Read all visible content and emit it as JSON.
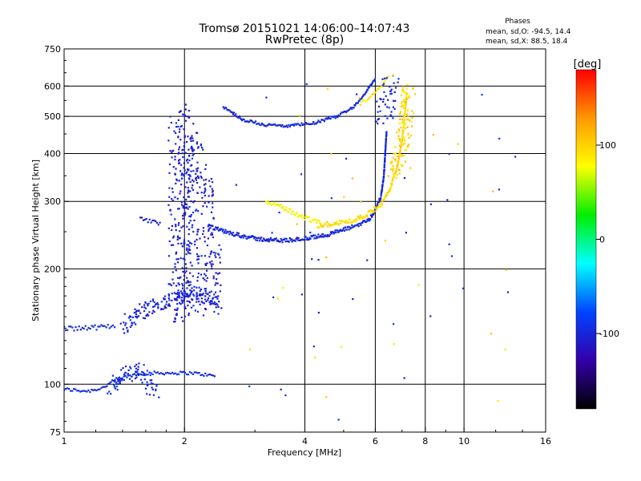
{
  "chart_data": {
    "type": "scatter",
    "title": "Tromsø 20151021 14:06:00–14:07:43",
    "subtitle": "RwPretec (8p)",
    "xlabel": "Frequency [MHz]",
    "ylabel": "Stationary phase Virtual Height [km]",
    "x_scale": "log",
    "y_scale": "log",
    "xlim": [
      1,
      16
    ],
    "ylim": [
      75,
      750
    ],
    "x_ticks": [
      1,
      2,
      4,
      6,
      8,
      10,
      16
    ],
    "y_ticks": [
      75,
      100,
      200,
      300,
      400,
      500,
      600,
      750
    ],
    "x_tick_labels": [
      "1",
      "2",
      "4",
      "6",
      "8",
      "10",
      "16"
    ],
    "y_tick_labels": [
      "75",
      "100",
      "200",
      "300",
      "400",
      "500",
      "600",
      "750"
    ],
    "x_gridlines": [
      2,
      4,
      6,
      8,
      10
    ],
    "y_gridlines": [
      100,
      200,
      300,
      400,
      500,
      600
    ],
    "info": {
      "heading": "Phases",
      "line_o": "mean, sd,O: -94.5, 14.4",
      "line_x": "mean, sd,X:  88.5, 18.4"
    },
    "colorbar": {
      "label": "[deg]",
      "range": [
        -180,
        180
      ],
      "ticks": [
        100,
        0,
        -100
      ],
      "tick_labels": [
        "100",
        "0",
        "-100"
      ],
      "colors": [
        "#ff0000",
        "#ff9900",
        "#ffff00",
        "#00ee00",
        "#00ffff",
        "#0044ff",
        "#3300aa",
        "#000000"
      ]
    },
    "traces": [
      {
        "id": "E-lower",
        "phase": -95,
        "spread_f": 0.0,
        "spread_h": 1,
        "density": 2,
        "points": [
          [
            1.0,
            97
          ],
          [
            1.15,
            96
          ],
          [
            1.25,
            98
          ],
          [
            1.35,
            103
          ],
          [
            1.5,
            106
          ],
          [
            1.65,
            107
          ],
          [
            1.9,
            107
          ],
          [
            2.1,
            107
          ],
          [
            2.4,
            105
          ]
        ]
      },
      {
        "id": "E-scatter",
        "phase": -95,
        "spread_f": 0.03,
        "spread_h": 6,
        "density": 4,
        "points": [
          [
            1.3,
            98
          ],
          [
            1.4,
            105
          ],
          [
            1.5,
            110
          ],
          [
            1.6,
            103
          ],
          [
            1.7,
            95
          ]
        ]
      },
      {
        "id": "Es-layer",
        "phase": -100,
        "spread_f": 0.0,
        "spread_h": 2,
        "density": 2,
        "points": [
          [
            1.0,
            140
          ],
          [
            1.1,
            140
          ],
          [
            1.25,
            141
          ],
          [
            1.35,
            142
          ]
        ]
      },
      {
        "id": "F1-cusp",
        "phase": -100,
        "spread_f": 0.02,
        "spread_h": 8,
        "density": 5,
        "points": [
          [
            1.4,
            143
          ],
          [
            1.5,
            150
          ],
          [
            1.6,
            158
          ],
          [
            1.75,
            162
          ],
          [
            1.9,
            165
          ],
          [
            2.0,
            170
          ],
          [
            2.1,
            175
          ],
          [
            2.3,
            168
          ],
          [
            2.45,
            160
          ]
        ]
      },
      {
        "id": "spread-column",
        "phase": -105,
        "spread_f": 0.02,
        "spread_h": 0,
        "density": 1,
        "vertical": true,
        "points": [
          [
            1.88,
            145,
            500
          ],
          [
            1.95,
            145,
            520
          ],
          [
            2.0,
            160,
            540
          ],
          [
            2.05,
            150,
            500
          ],
          [
            2.1,
            150,
            480
          ],
          [
            2.2,
            150,
            430
          ],
          [
            2.3,
            150,
            350
          ],
          [
            2.4,
            150,
            260
          ]
        ]
      },
      {
        "id": "low-band-250",
        "phase": -100,
        "spread_f": 0.0,
        "spread_h": 3,
        "density": 2,
        "points": [
          [
            1.55,
            270
          ],
          [
            1.65,
            266
          ],
          [
            1.75,
            262
          ]
        ]
      },
      {
        "id": "F2-O-trace",
        "phase": -100,
        "spread_f": 0.0,
        "spread_h": 3,
        "density": 4,
        "points": [
          [
            2.3,
            258
          ],
          [
            2.6,
            248
          ],
          [
            3.0,
            240
          ],
          [
            3.5,
            237
          ],
          [
            4.0,
            240
          ],
          [
            4.5,
            245
          ],
          [
            5.0,
            253
          ],
          [
            5.5,
            262
          ],
          [
            5.8,
            270
          ],
          [
            6.0,
            285
          ],
          [
            6.2,
            310
          ],
          [
            6.3,
            350
          ],
          [
            6.35,
            400
          ],
          [
            6.4,
            460
          ]
        ]
      },
      {
        "id": "F2-X-trace",
        "phase": 95,
        "spread_f": 0.0,
        "spread_h": 4,
        "density": 4,
        "points": [
          [
            4.3,
            260
          ],
          [
            4.8,
            263
          ],
          [
            5.3,
            268
          ],
          [
            5.8,
            280
          ],
          [
            6.2,
            295
          ],
          [
            6.5,
            320
          ],
          [
            6.8,
            370
          ],
          [
            7.0,
            430
          ],
          [
            7.1,
            500
          ],
          [
            7.2,
            580
          ]
        ]
      },
      {
        "id": "X-mid-arc",
        "phase": 80,
        "spread_f": 0.0,
        "spread_h": 4,
        "density": 3,
        "points": [
          [
            3.2,
            300
          ],
          [
            3.5,
            290
          ],
          [
            3.8,
            278
          ],
          [
            4.1,
            270
          ],
          [
            4.4,
            265
          ]
        ]
      },
      {
        "id": "F2-2hop",
        "phase": -100,
        "spread_f": 0.0,
        "spread_h": 4,
        "density": 3,
        "points": [
          [
            2.5,
            530
          ],
          [
            2.8,
            490
          ],
          [
            3.2,
            475
          ],
          [
            3.6,
            472
          ],
          [
            4.2,
            480
          ],
          [
            4.8,
            500
          ],
          [
            5.3,
            530
          ],
          [
            5.7,
            580
          ],
          [
            6.0,
            630
          ]
        ]
      },
      {
        "id": "X-2hop",
        "phase": 90,
        "spread_f": 0.0,
        "spread_h": 5,
        "density": 2,
        "points": [
          [
            5.5,
            540
          ],
          [
            5.8,
            560
          ],
          [
            6.2,
            600
          ],
          [
            6.5,
            640
          ]
        ]
      },
      {
        "id": "upper-spread",
        "phase": -100,
        "spread_f": 0.05,
        "spread_h": 10,
        "density": 3,
        "points": [
          [
            6.3,
            480
          ],
          [
            6.4,
            520
          ],
          [
            6.5,
            600
          ],
          [
            6.6,
            640
          ]
        ]
      },
      {
        "id": "yellow-wide",
        "phase": 100,
        "spread_f": 0.04,
        "spread_h": 12,
        "density": 4,
        "points": [
          [
            6.7,
            350
          ],
          [
            6.9,
            400
          ],
          [
            7.1,
            450
          ],
          [
            7.2,
            520
          ],
          [
            7.3,
            600
          ]
        ]
      }
    ]
  }
}
